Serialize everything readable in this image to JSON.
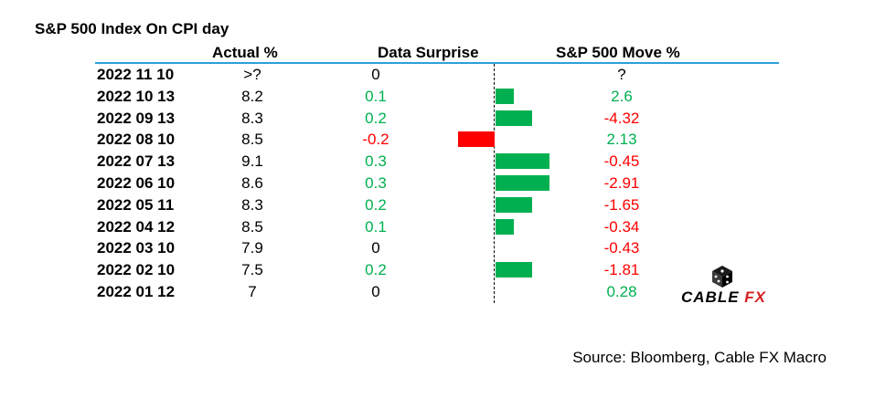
{
  "chart_data": {
    "type": "table",
    "title": "S&P 500 Index On CPI day",
    "columns": [
      "Actual %",
      "Data Surprise",
      "S&P 500 Move %"
    ],
    "rows": [
      {
        "date": "2022 11 10",
        "actual": ">?",
        "surprise": "0",
        "surprise_value": 0,
        "move": "?",
        "move_value": null
      },
      {
        "date": "2022 10 13",
        "actual": "8.2",
        "surprise": "0.1",
        "surprise_value": 0.1,
        "move": "2.6",
        "move_value": 2.6
      },
      {
        "date": "2022 09 13",
        "actual": "8.3",
        "surprise": "0.2",
        "surprise_value": 0.2,
        "move": "-4.32",
        "move_value": -4.32
      },
      {
        "date": "2022 08 10",
        "actual": "8.5",
        "surprise": "-0.2",
        "surprise_value": -0.2,
        "move": "2.13",
        "move_value": 2.13
      },
      {
        "date": "2022 07 13",
        "actual": "9.1",
        "surprise": "0.3",
        "surprise_value": 0.3,
        "move": "-0.45",
        "move_value": -0.45
      },
      {
        "date": "2022 06 10",
        "actual": "8.6",
        "surprise": "0.3",
        "surprise_value": 0.3,
        "move": "-2.91",
        "move_value": -2.91
      },
      {
        "date": "2022 05 11",
        "actual": "8.3",
        "surprise": "0.2",
        "surprise_value": 0.2,
        "move": "-1.65",
        "move_value": -1.65
      },
      {
        "date": "2022 04 12",
        "actual": "8.5",
        "surprise": "0.1",
        "surprise_value": 0.1,
        "move": "-0.34",
        "move_value": -0.34
      },
      {
        "date": "2022 03 10",
        "actual": "7.9",
        "surprise": "0",
        "surprise_value": 0,
        "move": "-0.43",
        "move_value": -0.43
      },
      {
        "date": "2022 02 10",
        "actual": "7.5",
        "surprise": "0.2",
        "surprise_value": 0.2,
        "move": "-1.81",
        "move_value": -1.81
      },
      {
        "date": "2022 01 12",
        "actual": "7",
        "surprise": "0",
        "surprise_value": 0,
        "move": "0.28",
        "move_value": 0.28
      }
    ],
    "bar_range": [
      -0.3,
      0.3
    ],
    "colors": {
      "positive": "#00b050",
      "negative": "#ff0000",
      "header_line": "#2e9fd8"
    }
  },
  "source": "Source: Bloomberg, Cable FX Macro",
  "logo": {
    "text_main": "CABLE ",
    "text_accent": "FX",
    "icon": "dice-icon"
  }
}
